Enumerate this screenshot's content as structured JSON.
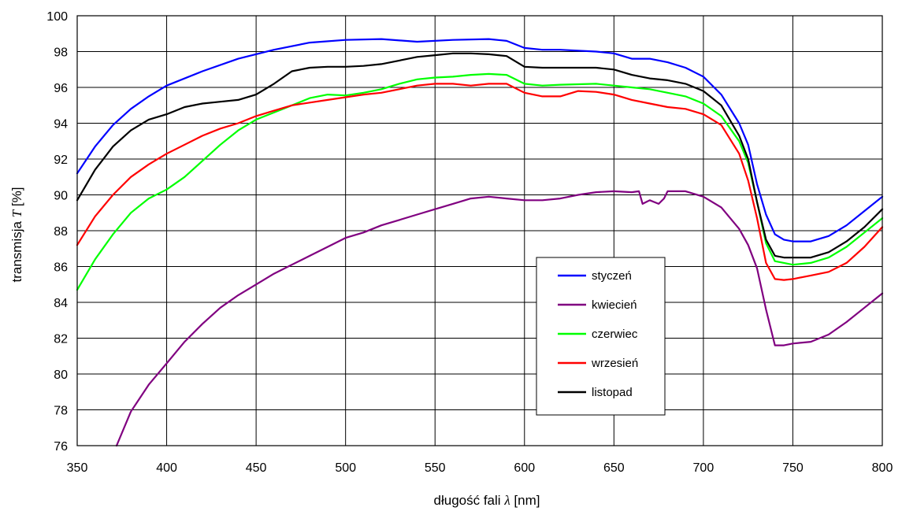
{
  "chart_data": {
    "type": "line",
    "title": "",
    "xlabel_prefix": "długość fali",
    "xlabel_symbol": "λ",
    "xlabel_unit": "[nm]",
    "ylabel_prefix": "transmisja",
    "ylabel_symbol": "T",
    "ylabel_unit": "[%]",
    "xlim": [
      350,
      800
    ],
    "ylim": [
      76,
      100
    ],
    "xticks": [
      350,
      400,
      450,
      500,
      550,
      600,
      650,
      700,
      750,
      800
    ],
    "yticks": [
      76,
      78,
      80,
      82,
      84,
      86,
      88,
      90,
      92,
      94,
      96,
      98,
      100
    ],
    "grid": true,
    "legend_position": "lower-right",
    "series": [
      {
        "name": "styczeń",
        "color": "#0000ff",
        "points": [
          [
            350,
            91.2
          ],
          [
            360,
            92.7
          ],
          [
            370,
            93.9
          ],
          [
            380,
            94.8
          ],
          [
            390,
            95.5
          ],
          [
            400,
            96.1
          ],
          [
            420,
            96.9
          ],
          [
            440,
            97.6
          ],
          [
            460,
            98.1
          ],
          [
            480,
            98.5
          ],
          [
            500,
            98.65
          ],
          [
            520,
            98.7
          ],
          [
            540,
            98.55
          ],
          [
            560,
            98.65
          ],
          [
            580,
            98.7
          ],
          [
            590,
            98.6
          ],
          [
            600,
            98.2
          ],
          [
            610,
            98.1
          ],
          [
            620,
            98.1
          ],
          [
            640,
            98.0
          ],
          [
            650,
            97.9
          ],
          [
            660,
            97.6
          ],
          [
            670,
            97.6
          ],
          [
            680,
            97.4
          ],
          [
            690,
            97.1
          ],
          [
            700,
            96.6
          ],
          [
            710,
            95.6
          ],
          [
            720,
            94.0
          ],
          [
            725,
            92.8
          ],
          [
            730,
            90.6
          ],
          [
            735,
            88.9
          ],
          [
            740,
            87.8
          ],
          [
            745,
            87.5
          ],
          [
            750,
            87.4
          ],
          [
            760,
            87.4
          ],
          [
            770,
            87.7
          ],
          [
            780,
            88.3
          ],
          [
            790,
            89.1
          ],
          [
            800,
            89.9
          ]
        ]
      },
      {
        "name": "kwiecień",
        "color": "#800080",
        "points": [
          [
            372,
            76.0
          ],
          [
            380,
            77.9
          ],
          [
            390,
            79.4
          ],
          [
            400,
            80.6
          ],
          [
            410,
            81.8
          ],
          [
            420,
            82.8
          ],
          [
            430,
            83.7
          ],
          [
            440,
            84.4
          ],
          [
            450,
            85.0
          ],
          [
            460,
            85.6
          ],
          [
            470,
            86.1
          ],
          [
            480,
            86.6
          ],
          [
            490,
            87.1
          ],
          [
            500,
            87.6
          ],
          [
            510,
            87.9
          ],
          [
            520,
            88.3
          ],
          [
            530,
            88.6
          ],
          [
            540,
            88.9
          ],
          [
            550,
            89.2
          ],
          [
            560,
            89.5
          ],
          [
            570,
            89.8
          ],
          [
            580,
            89.9
          ],
          [
            590,
            89.8
          ],
          [
            600,
            89.7
          ],
          [
            610,
            89.7
          ],
          [
            620,
            89.8
          ],
          [
            630,
            90.0
          ],
          [
            640,
            90.15
          ],
          [
            650,
            90.2
          ],
          [
            660,
            90.15
          ],
          [
            664,
            90.2
          ],
          [
            666,
            89.5
          ],
          [
            670,
            89.7
          ],
          [
            675,
            89.5
          ],
          [
            678,
            89.8
          ],
          [
            680,
            90.2
          ],
          [
            690,
            90.2
          ],
          [
            700,
            89.9
          ],
          [
            710,
            89.3
          ],
          [
            720,
            88.1
          ],
          [
            725,
            87.2
          ],
          [
            730,
            85.9
          ],
          [
            735,
            83.6
          ],
          [
            740,
            81.6
          ],
          [
            745,
            81.6
          ],
          [
            750,
            81.7
          ],
          [
            760,
            81.8
          ],
          [
            770,
            82.2
          ],
          [
            780,
            82.9
          ],
          [
            790,
            83.7
          ],
          [
            800,
            84.5
          ]
        ]
      },
      {
        "name": "czerwiec",
        "color": "#00ff00",
        "points": [
          [
            350,
            84.7
          ],
          [
            360,
            86.4
          ],
          [
            370,
            87.8
          ],
          [
            380,
            89.0
          ],
          [
            390,
            89.8
          ],
          [
            400,
            90.3
          ],
          [
            410,
            91.0
          ],
          [
            420,
            91.9
          ],
          [
            430,
            92.8
          ],
          [
            440,
            93.6
          ],
          [
            450,
            94.2
          ],
          [
            460,
            94.6
          ],
          [
            470,
            95.0
          ],
          [
            480,
            95.4
          ],
          [
            490,
            95.6
          ],
          [
            500,
            95.55
          ],
          [
            510,
            95.7
          ],
          [
            520,
            95.9
          ],
          [
            530,
            96.2
          ],
          [
            540,
            96.45
          ],
          [
            550,
            96.55
          ],
          [
            560,
            96.6
          ],
          [
            570,
            96.7
          ],
          [
            580,
            96.75
          ],
          [
            590,
            96.7
          ],
          [
            600,
            96.2
          ],
          [
            610,
            96.1
          ],
          [
            620,
            96.15
          ],
          [
            640,
            96.2
          ],
          [
            650,
            96.1
          ],
          [
            660,
            96.0
          ],
          [
            670,
            95.9
          ],
          [
            680,
            95.7
          ],
          [
            690,
            95.5
          ],
          [
            700,
            95.1
          ],
          [
            710,
            94.4
          ],
          [
            720,
            93.0
          ],
          [
            725,
            91.8
          ],
          [
            730,
            89.6
          ],
          [
            735,
            87.3
          ],
          [
            740,
            86.3
          ],
          [
            745,
            86.2
          ],
          [
            750,
            86.1
          ],
          [
            760,
            86.2
          ],
          [
            770,
            86.5
          ],
          [
            780,
            87.1
          ],
          [
            790,
            87.9
          ],
          [
            800,
            88.7
          ]
        ]
      },
      {
        "name": "wrzesień",
        "color": "#ff0000",
        "points": [
          [
            350,
            87.2
          ],
          [
            360,
            88.8
          ],
          [
            370,
            90.0
          ],
          [
            380,
            91.0
          ],
          [
            390,
            91.7
          ],
          [
            400,
            92.3
          ],
          [
            410,
            92.8
          ],
          [
            420,
            93.3
          ],
          [
            430,
            93.7
          ],
          [
            440,
            94.0
          ],
          [
            450,
            94.4
          ],
          [
            460,
            94.7
          ],
          [
            470,
            95.0
          ],
          [
            480,
            95.15
          ],
          [
            490,
            95.3
          ],
          [
            500,
            95.45
          ],
          [
            510,
            95.6
          ],
          [
            520,
            95.7
          ],
          [
            530,
            95.9
          ],
          [
            540,
            96.1
          ],
          [
            550,
            96.2
          ],
          [
            560,
            96.2
          ],
          [
            570,
            96.1
          ],
          [
            580,
            96.2
          ],
          [
            590,
            96.2
          ],
          [
            600,
            95.7
          ],
          [
            610,
            95.5
          ],
          [
            620,
            95.5
          ],
          [
            630,
            95.8
          ],
          [
            640,
            95.75
          ],
          [
            650,
            95.6
          ],
          [
            660,
            95.3
          ],
          [
            670,
            95.1
          ],
          [
            680,
            94.9
          ],
          [
            690,
            94.8
          ],
          [
            700,
            94.5
          ],
          [
            710,
            93.9
          ],
          [
            720,
            92.3
          ],
          [
            725,
            90.8
          ],
          [
            730,
            88.7
          ],
          [
            735,
            86.2
          ],
          [
            740,
            85.3
          ],
          [
            745,
            85.25
          ],
          [
            750,
            85.3
          ],
          [
            760,
            85.5
          ],
          [
            770,
            85.7
          ],
          [
            780,
            86.2
          ],
          [
            790,
            87.1
          ],
          [
            800,
            88.2
          ]
        ]
      },
      {
        "name": "listopad",
        "color": "#000000",
        "points": [
          [
            350,
            89.7
          ],
          [
            360,
            91.4
          ],
          [
            370,
            92.7
          ],
          [
            380,
            93.6
          ],
          [
            390,
            94.2
          ],
          [
            400,
            94.5
          ],
          [
            410,
            94.9
          ],
          [
            420,
            95.1
          ],
          [
            430,
            95.2
          ],
          [
            440,
            95.3
          ],
          [
            450,
            95.6
          ],
          [
            460,
            96.2
          ],
          [
            470,
            96.9
          ],
          [
            480,
            97.1
          ],
          [
            490,
            97.15
          ],
          [
            500,
            97.15
          ],
          [
            510,
            97.2
          ],
          [
            520,
            97.3
          ],
          [
            530,
            97.5
          ],
          [
            540,
            97.7
          ],
          [
            550,
            97.8
          ],
          [
            560,
            97.9
          ],
          [
            570,
            97.9
          ],
          [
            580,
            97.85
          ],
          [
            590,
            97.75
          ],
          [
            600,
            97.15
          ],
          [
            610,
            97.1
          ],
          [
            620,
            97.1
          ],
          [
            640,
            97.1
          ],
          [
            650,
            97.0
          ],
          [
            660,
            96.7
          ],
          [
            670,
            96.5
          ],
          [
            680,
            96.4
          ],
          [
            690,
            96.2
          ],
          [
            700,
            95.8
          ],
          [
            710,
            95.0
          ],
          [
            720,
            93.3
          ],
          [
            725,
            92.0
          ],
          [
            730,
            89.6
          ],
          [
            735,
            87.5
          ],
          [
            740,
            86.6
          ],
          [
            745,
            86.5
          ],
          [
            750,
            86.5
          ],
          [
            760,
            86.5
          ],
          [
            770,
            86.8
          ],
          [
            780,
            87.4
          ],
          [
            790,
            88.2
          ],
          [
            800,
            89.2
          ]
        ]
      }
    ]
  }
}
